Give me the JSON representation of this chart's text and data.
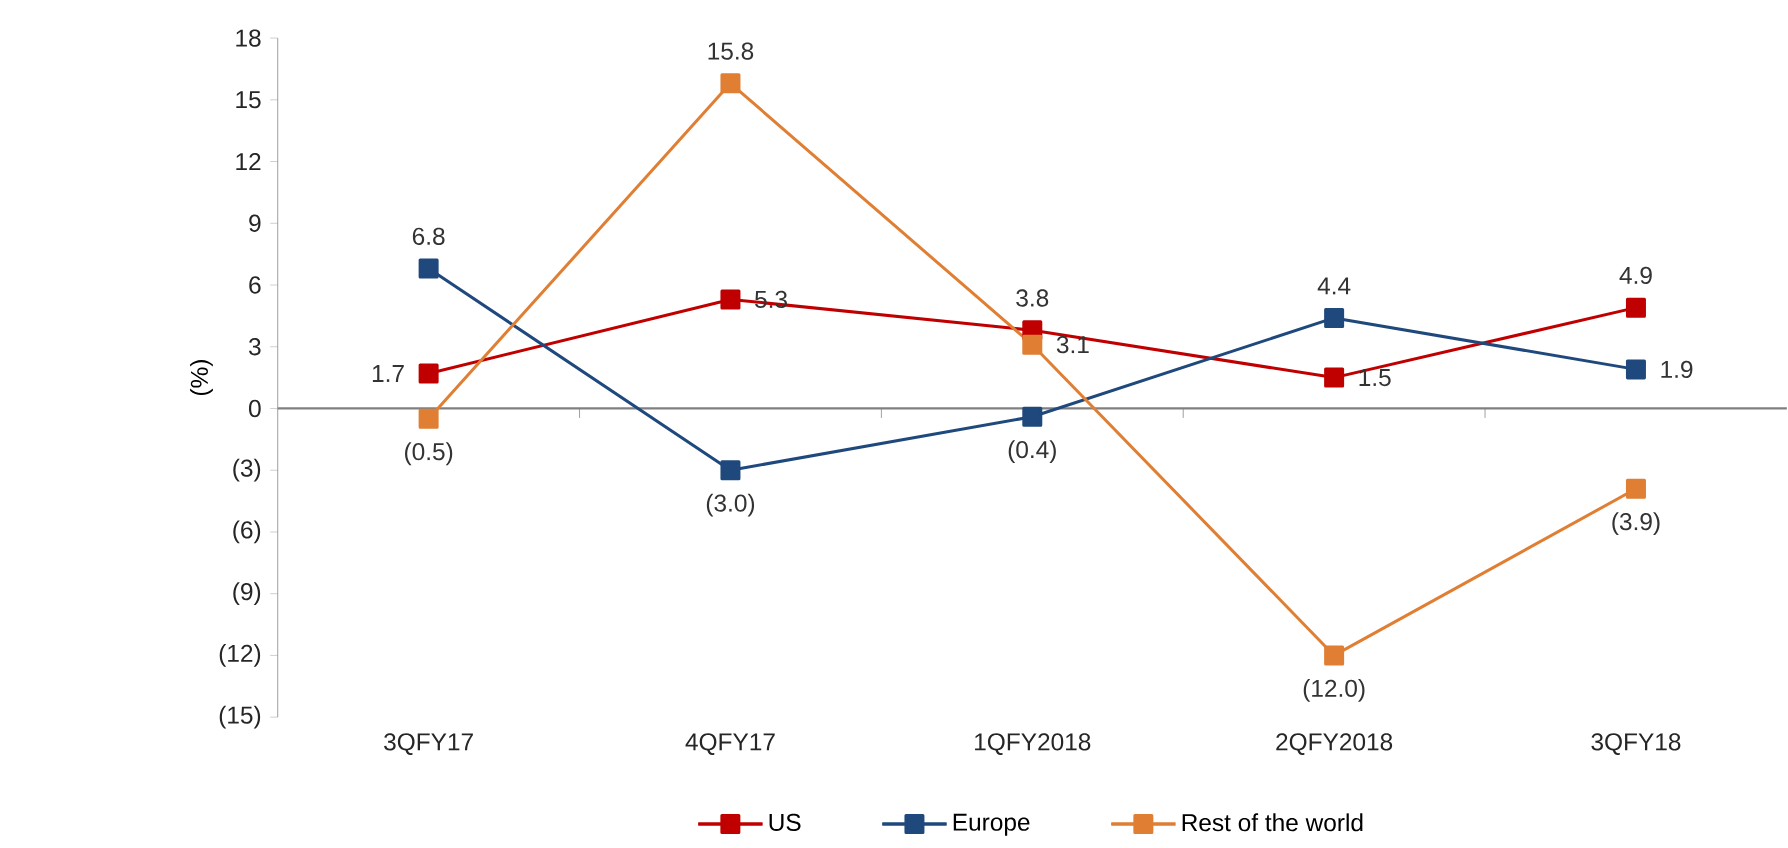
{
  "chart_data": {
    "type": "line",
    "ylabel": "(%)",
    "categories": [
      "3QFY17",
      "4QFY17",
      "1QFY2018",
      "2QFY2018",
      "3QFY18"
    ],
    "series": [
      {
        "name": "US",
        "color": "#c00000",
        "values": [
          1.7,
          5.3,
          3.8,
          1.5,
          4.9
        ],
        "value_labels": [
          "1.7",
          "5.3",
          "3.8",
          "1.5",
          "4.9"
        ]
      },
      {
        "name": "Europe",
        "color": "#1f497d",
        "values": [
          6.8,
          -3.0,
          -0.4,
          4.4,
          1.9
        ],
        "value_labels": [
          "6.8",
          "(3.0)",
          "(0.4)",
          "4.4",
          "1.9"
        ]
      },
      {
        "name": "Rest of the world",
        "color": "#e07f33",
        "values": [
          -0.5,
          15.8,
          3.1,
          -12.0,
          -3.9
        ],
        "value_labels": [
          "(0.5)",
          "15.8",
          "3.1",
          "(12.0)",
          "(3.9)"
        ]
      }
    ],
    "ylim": [
      -15,
      18
    ],
    "yticks": [
      {
        "value": -15,
        "label": "(15)"
      },
      {
        "value": -12,
        "label": "(12)"
      },
      {
        "value": -9,
        "label": "(9)"
      },
      {
        "value": -6,
        "label": "(6)"
      },
      {
        "value": -3,
        "label": "(3)"
      },
      0,
      3,
      6,
      9,
      12,
      15,
      18
    ],
    "marker": "square",
    "line_style": "solid",
    "legend": "bottom"
  }
}
